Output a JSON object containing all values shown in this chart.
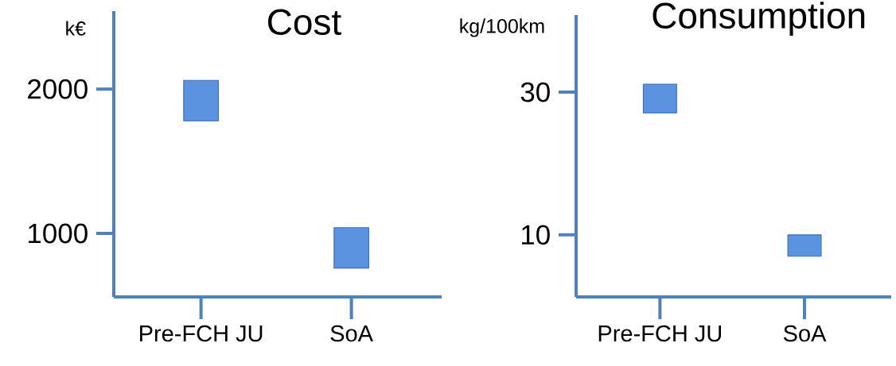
{
  "chart_data": [
    {
      "type": "bar",
      "title": "Cost",
      "ylabel": "k€",
      "categories": [
        "Pre-FCH JU",
        "SoA"
      ],
      "base": [
        1780,
        760
      ],
      "values": [
        280,
        280
      ],
      "color": "#5b93e0",
      "ylim": [
        560,
        2540
      ],
      "yticks": [
        1000,
        2000
      ]
    },
    {
      "type": "bar",
      "title": "Consumption",
      "ylabel": "kg/100km",
      "categories": [
        "Pre-FCH JU",
        "SoA"
      ],
      "base": [
        27.1,
        7.0
      ],
      "values": [
        4.0,
        3.0
      ],
      "color": "#5b93e0",
      "ylim": [
        1.3,
        40.8
      ],
      "yticks": [
        10,
        30
      ]
    }
  ]
}
